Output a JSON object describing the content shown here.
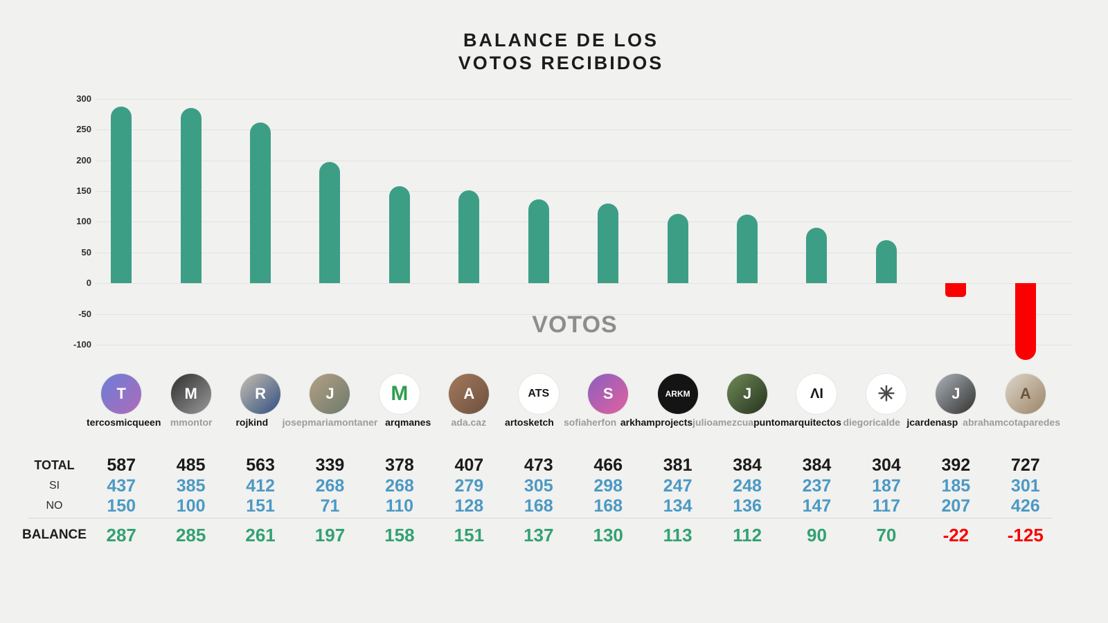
{
  "title": {
    "line1": "BALANCE DE LOS",
    "line2": "VOTOS RECIBIDOS"
  },
  "chart_data": {
    "type": "bar",
    "title": "BALANCE DE LOS VOTOS RECIBIDOS",
    "center_label": "VOTOS",
    "categories": [
      "tercosmicqueen",
      "mmontor",
      "rojkind",
      "josepmariamontaner",
      "arqmanes",
      "ada.caz",
      "artosketch",
      "sofiaherfon",
      "arkhamprojects",
      "julioamezcua",
      "puntomarquitectos",
      "diegoricalde",
      "jcardenasp",
      "abrahamcotaparedes"
    ],
    "series": [
      {
        "name": "TOTAL",
        "values": [
          587,
          485,
          563,
          339,
          378,
          407,
          473,
          466,
          381,
          384,
          384,
          304,
          392,
          727
        ]
      },
      {
        "name": "SI",
        "values": [
          437,
          385,
          412,
          268,
          268,
          279,
          305,
          298,
          247,
          248,
          237,
          187,
          185,
          301
        ]
      },
      {
        "name": "NO",
        "values": [
          150,
          100,
          151,
          71,
          110,
          128,
          168,
          168,
          134,
          136,
          147,
          117,
          207,
          426
        ]
      },
      {
        "name": "BALANCE",
        "values": [
          287,
          285,
          261,
          197,
          158,
          151,
          137,
          130,
          113,
          112,
          90,
          70,
          -22,
          -125
        ]
      }
    ],
    "plotted_series": "BALANCE",
    "ylim": [
      -100,
      300
    ],
    "yticks": [
      300,
      250,
      200,
      150,
      100,
      50,
      0,
      -50,
      -100
    ],
    "grid": "horizontal",
    "legend": "none",
    "positive_color": "#3d9e86",
    "negative_color": "#fa0000"
  },
  "table": {
    "row_labels": {
      "total": "TOTAL",
      "si": "SI",
      "no": "NO",
      "balance": "BALANCE"
    }
  },
  "profiles": [
    {
      "username": "tercosmicqueen",
      "name_color": "dark",
      "avatar": {
        "c1": "#6a7fd8",
        "c2": "#b06ab8",
        "initial": "T",
        "fg": "#ffffff",
        "size": 22
      }
    },
    {
      "username": "mmontor",
      "name_color": "gray",
      "avatar": {
        "c1": "#2f2f2f",
        "c2": "#9a9a9a",
        "initial": "M",
        "fg": "#ffffff",
        "size": 22
      }
    },
    {
      "username": "rojkind",
      "name_color": "dark",
      "avatar": {
        "c1": "#c8bfb2",
        "c2": "#2f4f7f",
        "initial": "R",
        "fg": "#ffffff",
        "size": 22
      }
    },
    {
      "username": "josepmariamontaner",
      "name_color": "gray",
      "avatar": {
        "c1": "#b5a184",
        "c2": "#6b7a6b",
        "initial": "J",
        "fg": "#ffffff",
        "size": 22
      }
    },
    {
      "username": "arqmanes",
      "name_color": "dark",
      "avatar": {
        "c1": "#ffffff",
        "c2": "#ffffff",
        "initial": "M",
        "fg": "#2f9e4e",
        "size": 30
      }
    },
    {
      "username": "ada.caz",
      "name_color": "gray",
      "avatar": {
        "c1": "#a4795c",
        "c2": "#6d503f",
        "initial": "A",
        "fg": "#ffffff",
        "size": 22
      }
    },
    {
      "username": "artosketch",
      "name_color": "dark",
      "avatar": {
        "c1": "#ffffff",
        "c2": "#ffffff",
        "initial": "ATS",
        "fg": "#161616",
        "size": 16
      }
    },
    {
      "username": "sofiaherfon",
      "name_color": "gray",
      "avatar": {
        "c1": "#8a5fc0",
        "c2": "#e2619e",
        "initial": "S",
        "fg": "#ffffff",
        "size": 22
      }
    },
    {
      "username": "arkhamprojects",
      "name_color": "dark",
      "avatar": {
        "c1": "#141414",
        "c2": "#141414",
        "initial": "ARKM",
        "fg": "#ffffff",
        "size": 12
      }
    },
    {
      "username": "julioamezcua",
      "name_color": "gray",
      "avatar": {
        "c1": "#6f8a56",
        "c2": "#26331f",
        "initial": "J",
        "fg": "#ffffff",
        "size": 22
      }
    },
    {
      "username": "puntomarquitectos",
      "name_color": "dark",
      "avatar": {
        "c1": "#ffffff",
        "c2": "#ffffff",
        "initial": "ΛI",
        "fg": "#161616",
        "size": 20
      }
    },
    {
      "username": "diegoricalde",
      "name_color": "gray",
      "avatar": {
        "c1": "#ffffff",
        "c2": "#ffffff",
        "initial": "✳",
        "fg": "#4a4a4a",
        "size": 30
      }
    },
    {
      "username": "jcardenasp",
      "name_color": "dark",
      "avatar": {
        "c1": "#aab3ba",
        "c2": "#33312f",
        "initial": "J",
        "fg": "#ffffff",
        "size": 22
      }
    },
    {
      "username": "abrahamcotaparedes",
      "name_color": "gray",
      "avatar": {
        "c1": "#ddd6c9",
        "c2": "#9c8468",
        "initial": "A",
        "fg": "#6b5440",
        "size": 22
      }
    }
  ],
  "colors": {
    "background": "#f1f1ef",
    "gridline": "#e2e2e0",
    "bar_positive": "#3d9e86",
    "bar_negative": "#fa0000",
    "total_text": "#1a1a1a",
    "si_no_text": "#4b99c4",
    "balance_positive_text": "#32a173",
    "balance_negative_text": "#f60000",
    "username_dark": "#151515",
    "username_gray": "#9c9c9c"
  }
}
